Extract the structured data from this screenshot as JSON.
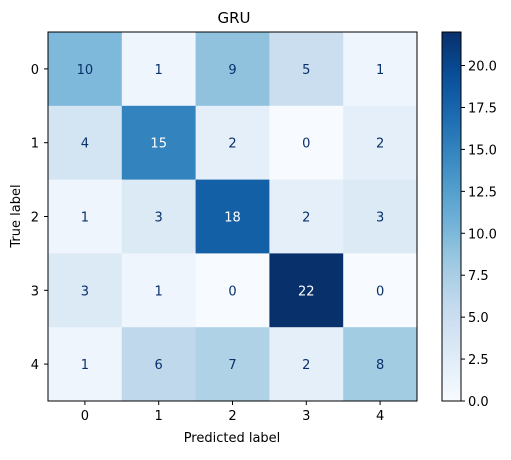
{
  "chart_data": {
    "type": "heatmap",
    "title": "GRU",
    "xlabel": "Predicted label",
    "ylabel": "True label",
    "x_categories": [
      "0",
      "1",
      "2",
      "3",
      "4"
    ],
    "y_categories": [
      "0",
      "1",
      "2",
      "3",
      "4"
    ],
    "values": [
      [
        10,
        1,
        9,
        5,
        1
      ],
      [
        4,
        15,
        2,
        0,
        2
      ],
      [
        1,
        3,
        18,
        2,
        3
      ],
      [
        3,
        1,
        0,
        22,
        0
      ],
      [
        1,
        6,
        7,
        2,
        8
      ]
    ],
    "colormap": "Blues",
    "vmin": 0,
    "vmax": 22,
    "colorbar_ticks": [
      "0.0",
      "2.5",
      "5.0",
      "7.5",
      "10.0",
      "12.5",
      "15.0",
      "17.5",
      "20.0"
    ],
    "colors": {
      "low": "#f7fbff",
      "high": "#08306b"
    }
  }
}
